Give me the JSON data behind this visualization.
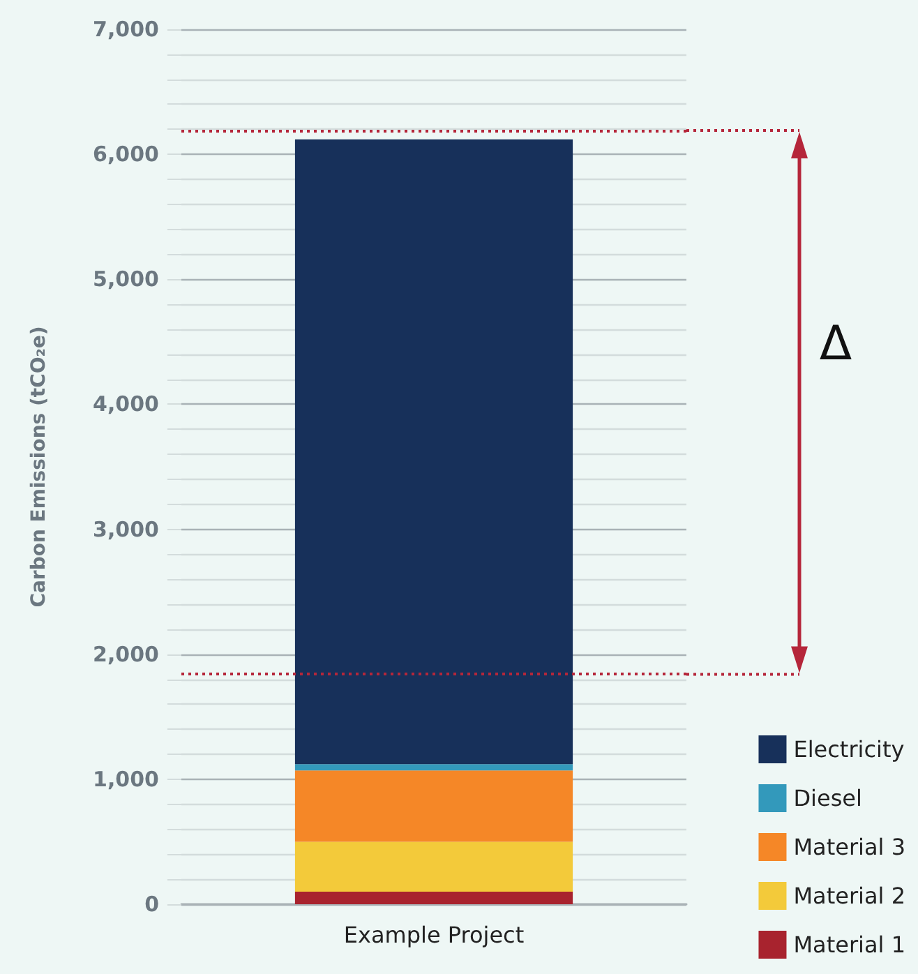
{
  "chart_data": {
    "type": "bar",
    "stacked": true,
    "ylabel": "Carbon Emissions (tCO₂e)",
    "categories": [
      "Example Project"
    ],
    "series": [
      {
        "name": "Material 1",
        "color": "#a8232e",
        "values": [
          100
        ]
      },
      {
        "name": "Material 2",
        "color": "#f3ca3a",
        "values": [
          400
        ]
      },
      {
        "name": "Material 3",
        "color": "#f58727",
        "values": [
          570
        ]
      },
      {
        "name": "Diesel",
        "color": "#3399bb",
        "values": [
          50
        ]
      },
      {
        "name": "Electricity",
        "color": "#17305a",
        "values": [
          5000
        ]
      }
    ],
    "ylim": [
      0,
      7000
    ],
    "yticks": [
      0,
      {
        "value": 200,
        "label": null
      },
      {
        "value": 400,
        "label": null
      },
      {
        "value": 600,
        "label": null
      },
      {
        "value": 800,
        "label": null
      },
      {
        "value": 1000,
        "label": "1,000"
      },
      {
        "value": 1200,
        "label": null
      },
      {
        "value": 1400,
        "label": null
      },
      {
        "value": 1600,
        "label": null
      },
      {
        "value": 1800,
        "label": null
      },
      {
        "value": 2000,
        "label": "2,000"
      },
      {
        "value": 2200,
        "label": null
      },
      {
        "value": 2400,
        "label": null
      },
      {
        "value": 2600,
        "label": null
      },
      {
        "value": 2800,
        "label": null
      },
      {
        "value": 3000,
        "label": "3,000"
      },
      {
        "value": 3200,
        "label": null
      },
      {
        "value": 3400,
        "label": null
      },
      {
        "value": 3600,
        "label": null
      },
      {
        "value": 3800,
        "label": null
      },
      {
        "value": 4000,
        "label": "4,000"
      },
      {
        "value": 4200,
        "label": null
      },
      {
        "value": 4400,
        "label": null
      },
      {
        "value": 4600,
        "label": null
      },
      {
        "value": 4800,
        "label": null
      },
      {
        "value": 5000,
        "label": "5,000"
      },
      {
        "value": 5200,
        "label": null
      },
      {
        "value": 5400,
        "label": null
      },
      {
        "value": 5600,
        "label": null
      },
      {
        "value": 5800,
        "label": null
      },
      {
        "value": 6000,
        "label": "6,000"
      },
      {
        "value": 6200,
        "label": null
      },
      {
        "value": 6400,
        "label": null
      },
      {
        "value": 6600,
        "label": null
      },
      {
        "value": 6800,
        "label": null
      },
      {
        "value": 7000,
        "label": "7,000"
      }
    ],
    "grid": "y",
    "legend": "bottom right",
    "ref_lines": [
      {
        "axis": "y",
        "value": 6190,
        "color": "#b5263a",
        "line_style": "dotted"
      },
      {
        "axis": "y",
        "value": 1840,
        "color": "#b5263a",
        "line_style": "dotted"
      }
    ],
    "annotations": [
      "Δ"
    ]
  }
}
